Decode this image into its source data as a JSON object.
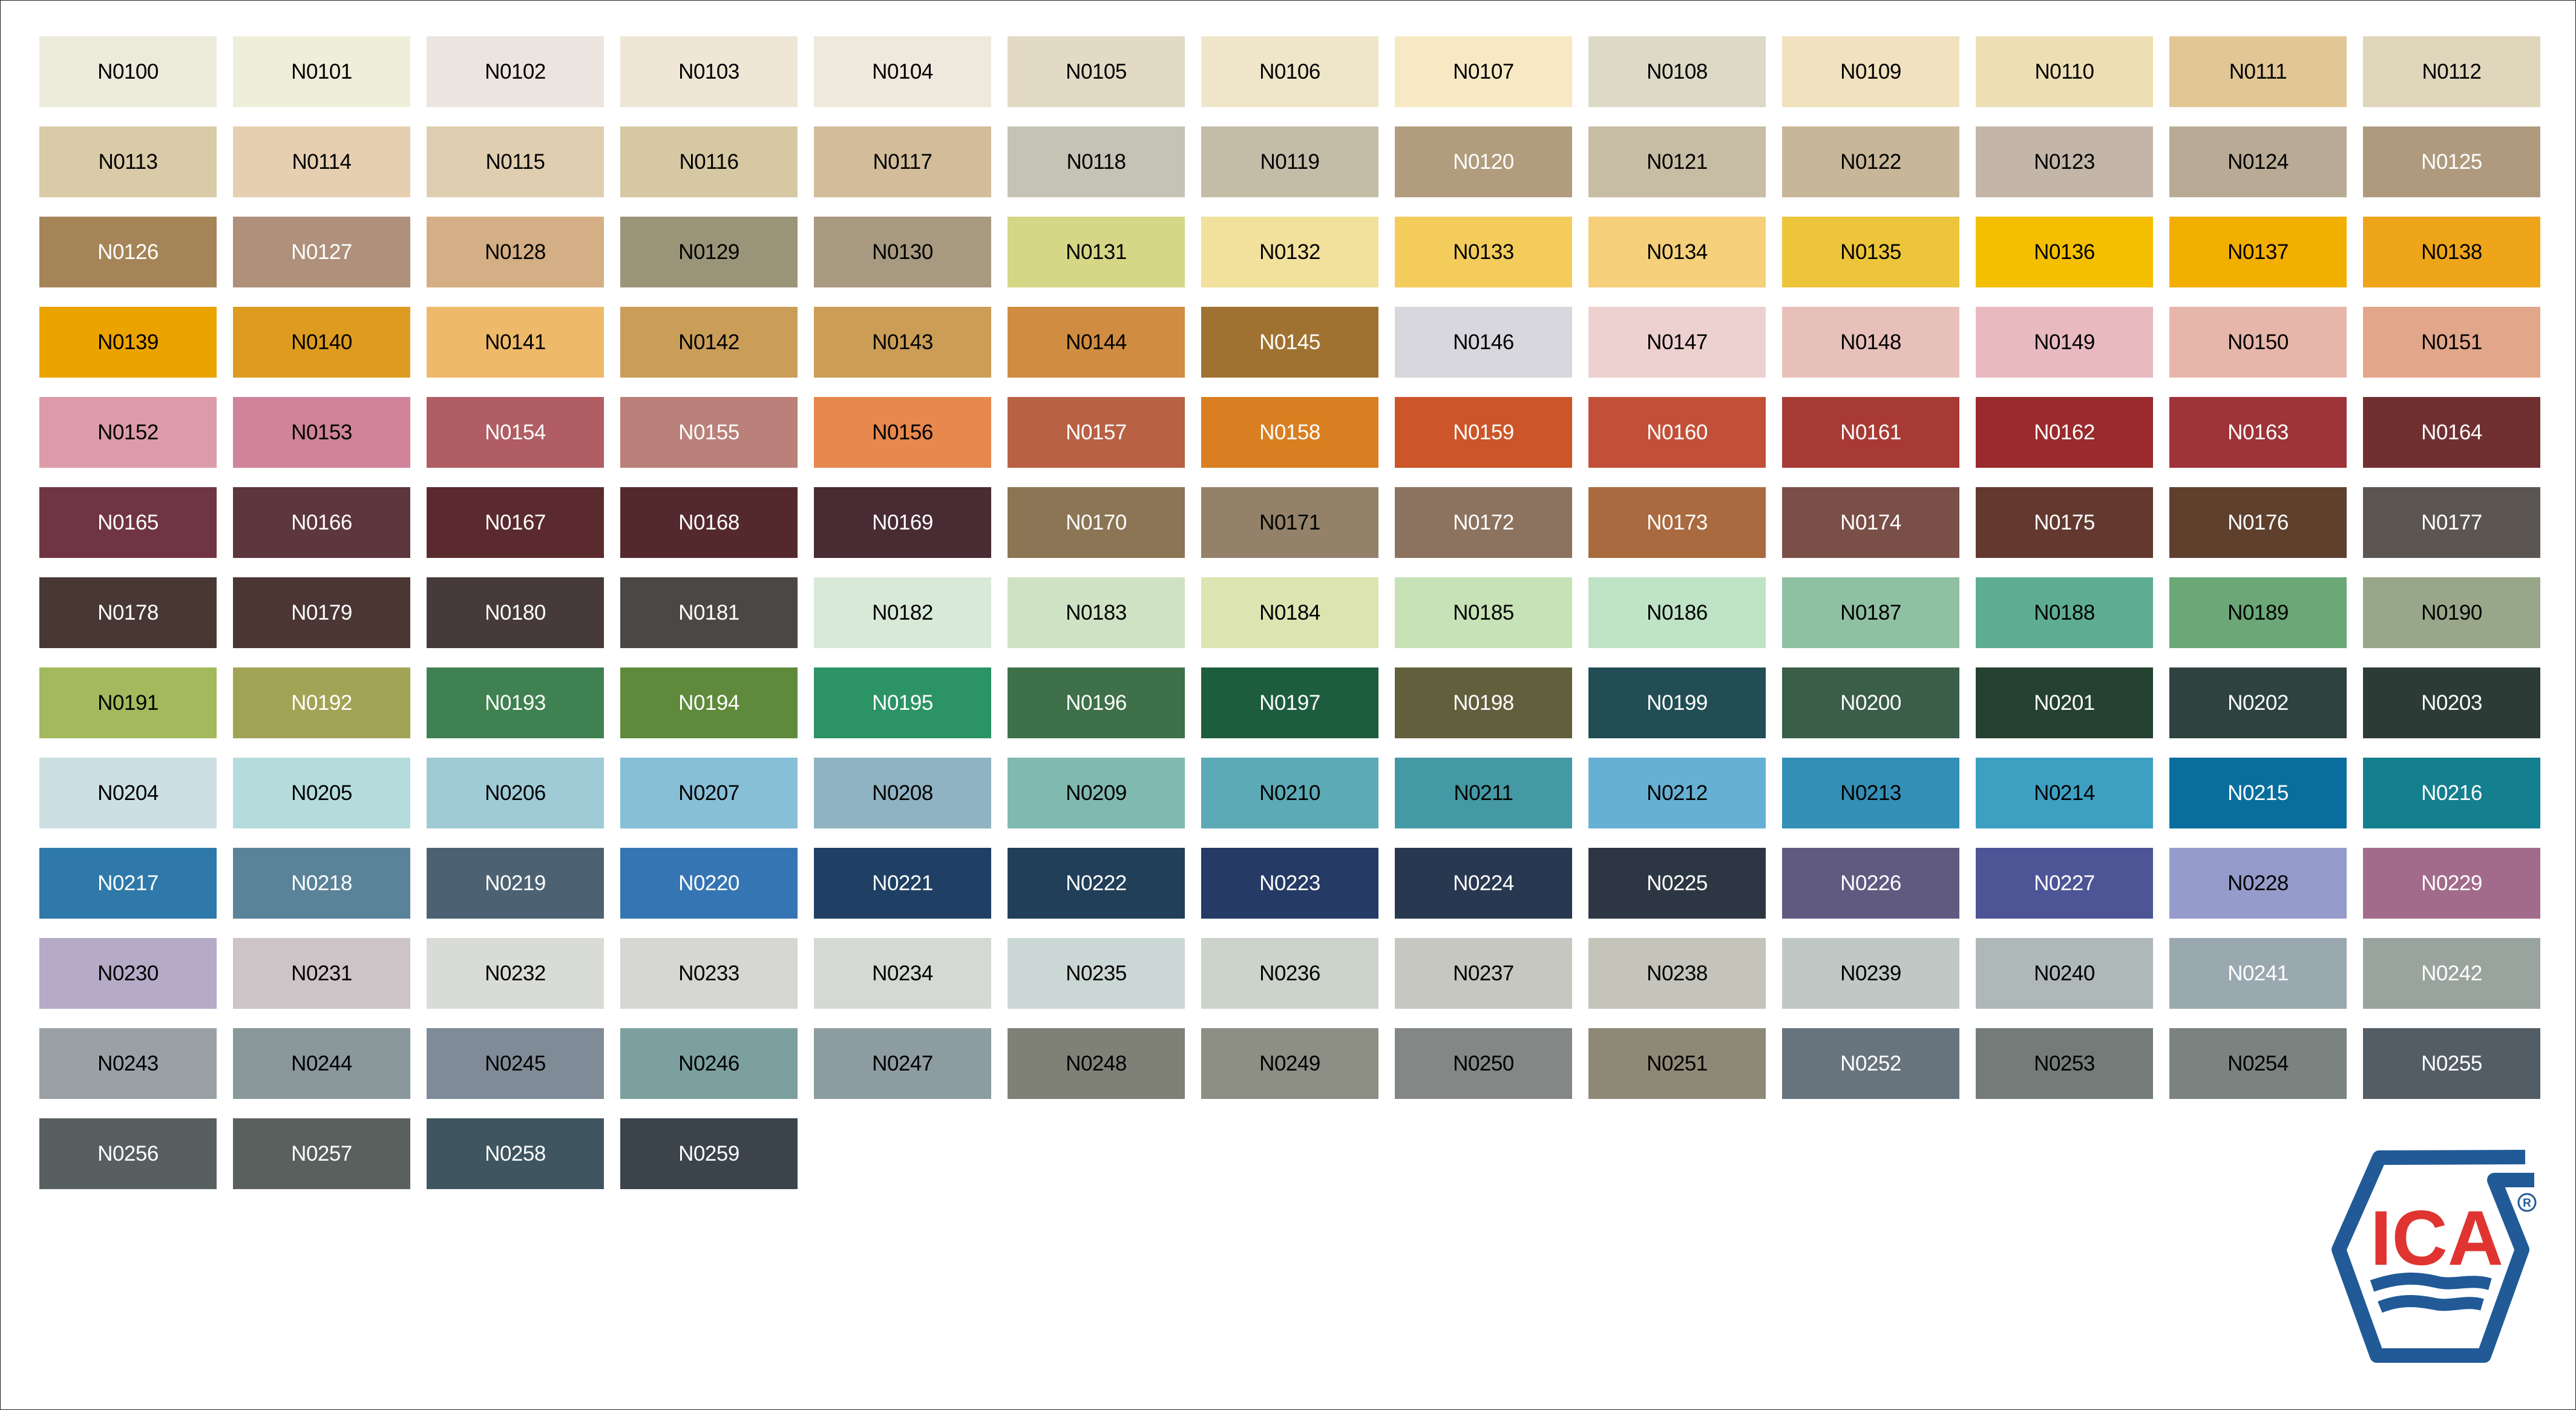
{
  "swatches": [
    [
      "N0100",
      "#ECEADA",
      "#000"
    ],
    [
      "N0101",
      "#EFEED9",
      "#000"
    ],
    [
      "N0102",
      "#EBE4DF",
      "#000"
    ],
    [
      "N0103",
      "#EFE6D6",
      "#000"
    ],
    [
      "N0104",
      "#EFE8DD",
      "#000"
    ],
    [
      "N0105",
      "#E3DAC6",
      "#000"
    ],
    [
      "N0106",
      "#EFE6C9",
      "#000"
    ],
    [
      "N0107",
      "#F7E9C4",
      "#000"
    ],
    [
      "N0108",
      "#DCDAC7",
      "#000"
    ],
    [
      "N0109",
      "#F1E1BE",
      "#000"
    ],
    [
      "N0110",
      "#EDDFB3",
      "#000"
    ],
    [
      "N0111",
      "#E2C796",
      "#000"
    ],
    [
      "N0112",
      "#E0D6BC",
      "#000"
    ],
    [
      "N0113",
      "#D9CAA8",
      "#000"
    ],
    [
      "N0114",
      "#E6CFB0",
      "#000"
    ],
    [
      "N0115",
      "#DFCEAF",
      "#000"
    ],
    [
      "N0116",
      "#D6C8A2",
      "#000"
    ],
    [
      "N0117",
      "#D3BC9A",
      "#000"
    ],
    [
      "N0118",
      "#C5C3B6",
      "#000"
    ],
    [
      "N0119",
      "#C3BDA8",
      "#000"
    ],
    [
      "N0120",
      "#B19C7E",
      "#fff"
    ],
    [
      "N0121",
      "#C7BCA4",
      "#000"
    ],
    [
      "N0122",
      "#C8B698",
      "#000"
    ],
    [
      "N0123",
      "#C3B6A8",
      "#000"
    ],
    [
      "N0124",
      "#B8AA94",
      "#000"
    ],
    [
      "N0125",
      "#AF9A7E",
      "#fff"
    ],
    [
      "N0126",
      "#A58558",
      "#fff"
    ],
    [
      "N0127",
      "#AE907B",
      "#fff"
    ],
    [
      "N0128",
      "#D4AE84",
      "#000"
    ],
    [
      "N0129",
      "#9A9479",
      "#000"
    ],
    [
      "N0130",
      "#A89A80",
      "#000"
    ],
    [
      "N0131",
      "#D5D686",
      "#000"
    ],
    [
      "N0132",
      "#F1E19C",
      "#000"
    ],
    [
      "N0133",
      "#F4CC5C",
      "#000"
    ],
    [
      "N0134",
      "#F5CF7A",
      "#000"
    ],
    [
      "N0135",
      "#EDC53B",
      "#000"
    ],
    [
      "N0136",
      "#F3BF00",
      "#000"
    ],
    [
      "N0137",
      "#F3AF00",
      "#000"
    ],
    [
      "N0138",
      "#EFA51A",
      "#000"
    ],
    [
      "N0139",
      "#EBA300",
      "#000"
    ],
    [
      "N0140",
      "#DD9C20",
      "#000"
    ],
    [
      "N0141",
      "#EEBA6A",
      "#000"
    ],
    [
      "N0142",
      "#CA9E58",
      "#000"
    ],
    [
      "N0143",
      "#CB9D56",
      "#000"
    ],
    [
      "N0144",
      "#D08C40",
      "#000"
    ],
    [
      "N0145",
      "#A07232",
      "#fff"
    ],
    [
      "N0146",
      "#D8D7DD",
      "#000"
    ],
    [
      "N0147",
      "#EDD1CF",
      "#000"
    ],
    [
      "N0148",
      "#E8C0BA",
      "#000"
    ],
    [
      "N0149",
      "#E8BAC0",
      "#000"
    ],
    [
      "N0150",
      "#E7B6AA",
      "#000"
    ],
    [
      "N0151",
      "#E2A68B",
      "#000"
    ],
    [
      "N0152",
      "#DC9BA8",
      "#000"
    ],
    [
      "N0153",
      "#CF8499",
      "#000"
    ],
    [
      "N0154",
      "#B05E63",
      "#fff"
    ],
    [
      "N0155",
      "#BA8079",
      "#fff"
    ],
    [
      "N0156",
      "#E7884D",
      "#000"
    ],
    [
      "N0157",
      "#B86144",
      "#fff"
    ],
    [
      "N0158",
      "#D97F22",
      "#fff"
    ],
    [
      "N0159",
      "#CC5529",
      "#fff"
    ],
    [
      "N0160",
      "#C25038",
      "#fff"
    ],
    [
      "N0161",
      "#A83A36",
      "#fff"
    ],
    [
      "N0162",
      "#9A2A2C",
      "#fff"
    ],
    [
      "N0163",
      "#9E3338",
      "#fff"
    ],
    [
      "N0164",
      "#703032",
      "#fff"
    ],
    [
      "N0165",
      "#703544",
      "#fff"
    ],
    [
      "N0166",
      "#5E363D",
      "#fff"
    ],
    [
      "N0167",
      "#5B2A2E",
      "#fff"
    ],
    [
      "N0168",
      "#54292D",
      "#fff"
    ],
    [
      "N0169",
      "#482B33",
      "#fff"
    ],
    [
      "N0170",
      "#8B7555",
      "#fff"
    ],
    [
      "N0171",
      "#938269",
      "#000"
    ],
    [
      "N0172",
      "#8B7360",
      "#fff"
    ],
    [
      "N0173",
      "#A86A3E",
      "#fff"
    ],
    [
      "N0174",
      "#7A4F48",
      "#fff"
    ],
    [
      "N0175",
      "#63392F",
      "#fff"
    ],
    [
      "N0176",
      "#5E402D",
      "#fff"
    ],
    [
      "N0177",
      "#5C5653",
      "#fff"
    ],
    [
      "N0178",
      "#473833",
      "#fff"
    ],
    [
      "N0179",
      "#4B3633",
      "#fff"
    ],
    [
      "N0180",
      "#463A3A",
      "#fff"
    ],
    [
      "N0181",
      "#4B4745",
      "#fff"
    ],
    [
      "N0182",
      "#D8E9D7",
      "#000"
    ],
    [
      "N0183",
      "#CFE3C4",
      "#000"
    ],
    [
      "N0184",
      "#DCE5B2",
      "#000"
    ],
    [
      "N0185",
      "#C6E2B6",
      "#000"
    ],
    [
      "N0186",
      "#BFE3C6",
      "#000"
    ],
    [
      "N0187",
      "#8FC0A2",
      "#000"
    ],
    [
      "N0188",
      "#5EAD93",
      "#000"
    ],
    [
      "N0189",
      "#6BA777",
      "#000"
    ],
    [
      "N0190",
      "#98A789",
      "#000"
    ],
    [
      "N0191",
      "#A2BA5D",
      "#000"
    ],
    [
      "N0192",
      "#A3A356",
      "#fff"
    ],
    [
      "N0193",
      "#408151",
      "#fff"
    ],
    [
      "N0194",
      "#5F8A3B",
      "#fff"
    ],
    [
      "N0195",
      "#2C9364",
      "#fff"
    ],
    [
      "N0196",
      "#3E7049",
      "#fff"
    ],
    [
      "N0197",
      "#1D5D3D",
      "#fff"
    ],
    [
      "N0198",
      "#625F3D",
      "#fff"
    ],
    [
      "N0199",
      "#224D55",
      "#fff"
    ],
    [
      "N0200",
      "#3A5E48",
      "#fff"
    ],
    [
      "N0201",
      "#254130",
      "#fff"
    ],
    [
      "N0202",
      "#2E4240",
      "#fff"
    ],
    [
      "N0203",
      "#2C3B36",
      "#fff"
    ],
    [
      "N0204",
      "#CCE0E3",
      "#000"
    ],
    [
      "N0205",
      "#B5DCDC",
      "#000"
    ],
    [
      "N0206",
      "#9FCBD6",
      "#000"
    ],
    [
      "N0207",
      "#87BFD7",
      "#000"
    ],
    [
      "N0208",
      "#8FB3C2",
      "#000"
    ],
    [
      "N0209",
      "#80B9AF",
      "#000"
    ],
    [
      "N0210",
      "#5CAAB5",
      "#000"
    ],
    [
      "N0211",
      "#4499A4",
      "#000"
    ],
    [
      "N0212",
      "#66B0D3",
      "#000"
    ],
    [
      "N0213",
      "#348FB6",
      "#000"
    ],
    [
      "N0214",
      "#3DA0C2",
      "#000"
    ],
    [
      "N0215",
      "#096E9E",
      "#fff"
    ],
    [
      "N0216",
      "#147F8F",
      "#fff"
    ],
    [
      "N0217",
      "#2E79A9",
      "#fff"
    ],
    [
      "N0218",
      "#5A8399",
      "#fff"
    ],
    [
      "N0219",
      "#4C6272",
      "#fff"
    ],
    [
      "N0220",
      "#3675B3",
      "#fff"
    ],
    [
      "N0221",
      "#1F4064",
      "#fff"
    ],
    [
      "N0222",
      "#213F58",
      "#fff"
    ],
    [
      "N0223",
      "#253A64",
      "#fff"
    ],
    [
      "N0224",
      "#283850",
      "#fff"
    ],
    [
      "N0225",
      "#2D3743",
      "#fff"
    ],
    [
      "N0226",
      "#605A81",
      "#fff"
    ],
    [
      "N0227",
      "#4D5597",
      "#fff"
    ],
    [
      "N0228",
      "#959BCA",
      "#000"
    ],
    [
      "N0229",
      "#A26B8B",
      "#fff"
    ],
    [
      "N0230",
      "#B5ABC7",
      "#000"
    ],
    [
      "N0231",
      "#CDC4C8",
      "#000"
    ],
    [
      "N0232",
      "#D8DBD6",
      "#000"
    ],
    [
      "N0233",
      "#D6D6D2",
      "#000"
    ],
    [
      "N0234",
      "#D5D9D4",
      "#000"
    ],
    [
      "N0235",
      "#CBD7D5",
      "#000"
    ],
    [
      "N0236",
      "#CBD3CB",
      "#000"
    ],
    [
      "N0237",
      "#C6C7C1",
      "#000"
    ],
    [
      "N0238",
      "#C4C4BA",
      "#000"
    ],
    [
      "N0239",
      "#BFC8C4",
      "#000"
    ],
    [
      "N0240",
      "#AEB8B8",
      "#000"
    ],
    [
      "N0241",
      "#9AA8AF",
      "#fff"
    ],
    [
      "N0242",
      "#9AA49E",
      "#fff"
    ],
    [
      "N0243",
      "#99A1A6",
      "#000"
    ],
    [
      "N0244",
      "#8A979B",
      "#000"
    ],
    [
      "N0245",
      "#7F8B97",
      "#000"
    ],
    [
      "N0246",
      "#7BA09F",
      "#000"
    ],
    [
      "N0247",
      "#8D9CA0",
      "#000"
    ],
    [
      "N0248",
      "#7F8177",
      "#000"
    ],
    [
      "N0249",
      "#8D8F85",
      "#000"
    ],
    [
      "N0250",
      "#838786",
      "#000"
    ],
    [
      "N0251",
      "#8E8877",
      "#000"
    ],
    [
      "N0252",
      "#67737D",
      "#fff"
    ],
    [
      "N0253",
      "#747C7A",
      "#000"
    ],
    [
      "N0254",
      "#7B8380",
      "#000"
    ],
    [
      "N0255",
      "#535D66",
      "#fff"
    ],
    [
      "N0256",
      "#585F61",
      "#fff"
    ],
    [
      "N0257",
      "#5A605D",
      "#fff"
    ],
    [
      "N0258",
      "#3F5660",
      "#fff"
    ],
    [
      "N0259",
      "#3B434B",
      "#fff"
    ]
  ],
  "logo": {
    "text": "ICA",
    "registered": "®",
    "blue": "#215A97",
    "red": "#E03431"
  }
}
